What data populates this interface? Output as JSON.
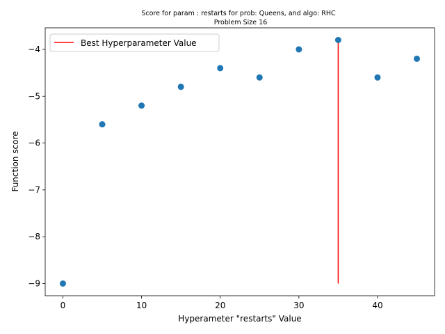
{
  "chart_data": {
    "type": "scatter",
    "title": "Score for param : restarts for prob: Queens, and algo: RHC",
    "subtitle": "Problem Size 16",
    "xlabel": "Hyperameter \"restarts\" Value",
    "ylabel": "Function score",
    "xlim": [
      -2.25,
      47.25
    ],
    "ylim": [
      -9.26,
      -3.54
    ],
    "x_ticks": [
      0,
      10,
      20,
      30,
      40
    ],
    "x_tick_labels": [
      "0",
      "10",
      "20",
      "30",
      "40"
    ],
    "y_ticks": [
      -9,
      -8,
      -7,
      -6,
      -5,
      -4
    ],
    "y_tick_labels": [
      "−9",
      "−8",
      "−7",
      "−6",
      "−5",
      "−4"
    ],
    "grid": false,
    "legend_position": "top-left",
    "series": [
      {
        "x": [
          0,
          5,
          10,
          15,
          20,
          25,
          30,
          35,
          40,
          45
        ],
        "y": [
          -9.0,
          -5.6,
          -5.2,
          -4.8,
          -4.4,
          -4.6,
          -4.0,
          -3.8,
          -4.6,
          -4.2
        ],
        "color": "#1f77b4"
      }
    ],
    "best_line": {
      "name": "Best Hyperparameter Value",
      "x": 35,
      "y_from": -9.0,
      "y_to": -3.8,
      "color": "#ff0000"
    }
  }
}
